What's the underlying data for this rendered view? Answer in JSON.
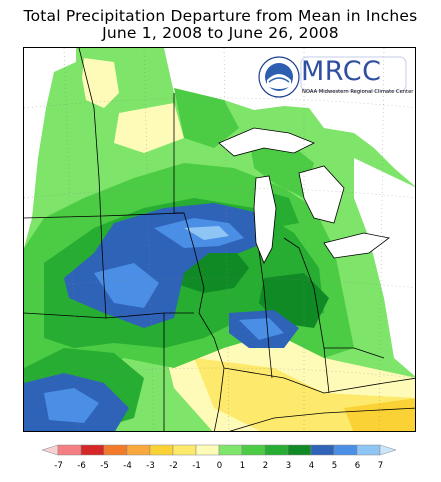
{
  "title": {
    "line1": "Total Precipitation Departure from Mean in Inches",
    "line2": "June 1, 2008 to June 26, 2008"
  },
  "logo": {
    "name": "MRCC",
    "subtitle": "NOAA Midwestern Regional Climate Center",
    "ring_text": "NATIONAL OCEANIC AND ATMOSPHERIC ADMINISTRATION"
  },
  "legend": {
    "ticks": [
      "-7",
      "-6",
      "-5",
      "-4",
      "-3",
      "-2",
      "-1",
      "0",
      "1",
      "2",
      "3",
      "4",
      "5",
      "6",
      "7"
    ],
    "colors": [
      "#f47f83",
      "#d62728",
      "#f27a2b",
      "#f8a83c",
      "#fbd236",
      "#fde96c",
      "#fefbb8",
      "#7ee46a",
      "#4ccc44",
      "#26ad32",
      "#0f8a24",
      "#2e63b8",
      "#4a8ee6",
      "#8ec5f5"
    ],
    "end_low_color": "#f8d0d2",
    "end_high_color": "#c9e6fb"
  }
}
